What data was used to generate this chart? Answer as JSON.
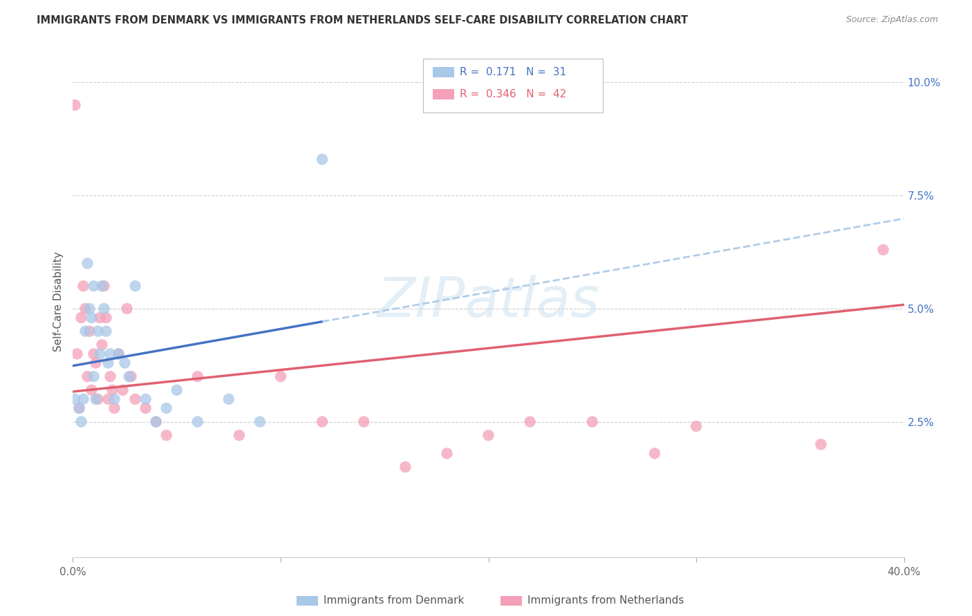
{
  "title": "IMMIGRANTS FROM DENMARK VS IMMIGRANTS FROM NETHERLANDS SELF-CARE DISABILITY CORRELATION CHART",
  "source": "Source: ZipAtlas.com",
  "ylabel": "Self-Care Disability",
  "ytick_labels": [
    "10.0%",
    "7.5%",
    "5.0%",
    "2.5%"
  ],
  "ytick_vals": [
    0.1,
    0.075,
    0.05,
    0.025
  ],
  "xmin": 0.0,
  "xmax": 0.4,
  "ymin": -0.005,
  "ymax": 0.108,
  "color_denmark": "#a8c8e8",
  "color_netherlands": "#f4a0b8",
  "color_line_denmark": "#4472c4",
  "color_line_netherlands": "#e06070",
  "color_dashed": "#b0cce8",
  "watermark": "ZIPatlas",
  "legend_r1_color": "#4472c4",
  "legend_r2_color": "#e06070",
  "denmark_x": [
    0.001,
    0.003,
    0.004,
    0.005,
    0.006,
    0.007,
    0.008,
    0.009,
    0.01,
    0.01,
    0.011,
    0.012,
    0.013,
    0.014,
    0.015,
    0.016,
    0.017,
    0.018,
    0.02,
    0.022,
    0.025,
    0.027,
    0.03,
    0.035,
    0.04,
    0.045,
    0.05,
    0.06,
    0.075,
    0.09,
    0.12
  ],
  "denmark_y": [
    0.03,
    0.028,
    0.025,
    0.03,
    0.045,
    0.06,
    0.05,
    0.048,
    0.055,
    0.035,
    0.03,
    0.045,
    0.04,
    0.055,
    0.05,
    0.045,
    0.038,
    0.04,
    0.03,
    0.04,
    0.038,
    0.035,
    0.055,
    0.03,
    0.025,
    0.028,
    0.032,
    0.025,
    0.03,
    0.025,
    0.083
  ],
  "netherlands_x": [
    0.001,
    0.002,
    0.003,
    0.004,
    0.005,
    0.006,
    0.007,
    0.008,
    0.009,
    0.01,
    0.011,
    0.012,
    0.013,
    0.014,
    0.015,
    0.016,
    0.017,
    0.018,
    0.019,
    0.02,
    0.022,
    0.024,
    0.026,
    0.028,
    0.03,
    0.035,
    0.04,
    0.045,
    0.06,
    0.08,
    0.1,
    0.12,
    0.14,
    0.16,
    0.18,
    0.2,
    0.22,
    0.25,
    0.28,
    0.3,
    0.36,
    0.39
  ],
  "netherlands_y": [
    0.095,
    0.04,
    0.028,
    0.048,
    0.055,
    0.05,
    0.035,
    0.045,
    0.032,
    0.04,
    0.038,
    0.03,
    0.048,
    0.042,
    0.055,
    0.048,
    0.03,
    0.035,
    0.032,
    0.028,
    0.04,
    0.032,
    0.05,
    0.035,
    0.03,
    0.028,
    0.025,
    0.022,
    0.035,
    0.022,
    0.035,
    0.025,
    0.025,
    0.015,
    0.018,
    0.022,
    0.025,
    0.025,
    0.018,
    0.024,
    0.02,
    0.063
  ]
}
